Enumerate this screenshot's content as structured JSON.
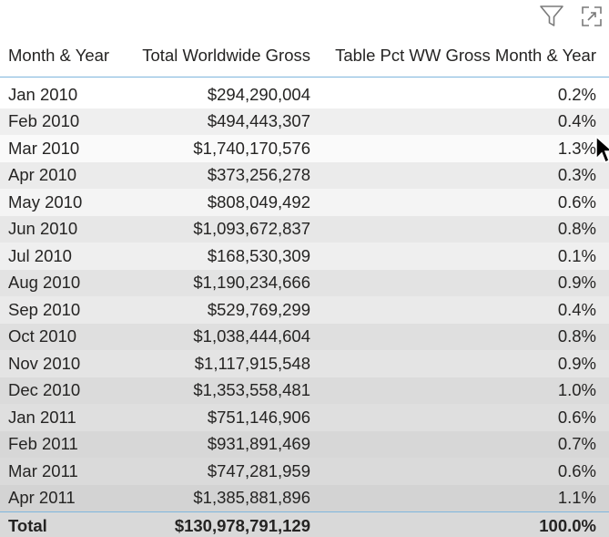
{
  "header_icons": {
    "filter": "filter-icon",
    "focus_mode": "focus-mode-icon"
  },
  "table": {
    "columns": [
      "Month & Year",
      "Total Worldwide Gross",
      "Table Pct WW Gross Month & Year"
    ],
    "rows": [
      {
        "month": "Jan 2010",
        "gross": "$294,290,004",
        "pct": "0.2%"
      },
      {
        "month": "Feb 2010",
        "gross": "$494,443,307",
        "pct": "0.4%"
      },
      {
        "month": "Mar 2010",
        "gross": "$1,740,170,576",
        "pct": "1.3%"
      },
      {
        "month": "Apr 2010",
        "gross": "$373,256,278",
        "pct": "0.3%"
      },
      {
        "month": "May 2010",
        "gross": "$808,049,492",
        "pct": "0.6%"
      },
      {
        "month": "Jun 2010",
        "gross": "$1,093,672,837",
        "pct": "0.8%"
      },
      {
        "month": "Jul 2010",
        "gross": "$168,530,309",
        "pct": "0.1%"
      },
      {
        "month": "Aug 2010",
        "gross": "$1,190,234,666",
        "pct": "0.9%"
      },
      {
        "month": "Sep 2010",
        "gross": "$529,769,299",
        "pct": "0.4%"
      },
      {
        "month": "Oct 2010",
        "gross": "$1,038,444,604",
        "pct": "0.8%"
      },
      {
        "month": "Nov 2010",
        "gross": "$1,117,915,548",
        "pct": "0.9%"
      },
      {
        "month": "Dec 2010",
        "gross": "$1,353,558,481",
        "pct": "1.0%"
      },
      {
        "month": "Jan 2011",
        "gross": "$751,146,906",
        "pct": "0.6%"
      },
      {
        "month": "Feb 2011",
        "gross": "$931,891,469",
        "pct": "0.7%"
      },
      {
        "month": "Mar 2011",
        "gross": "$747,281,959",
        "pct": "0.6%"
      },
      {
        "month": "Apr 2011",
        "gross": "$1,385,881,896",
        "pct": "1.1%"
      }
    ],
    "total": {
      "label": "Total",
      "gross": "$130,978,791,129",
      "pct": "100.0%"
    }
  },
  "colors": {
    "header_border": "#7fb6dd",
    "text": "#252423"
  }
}
